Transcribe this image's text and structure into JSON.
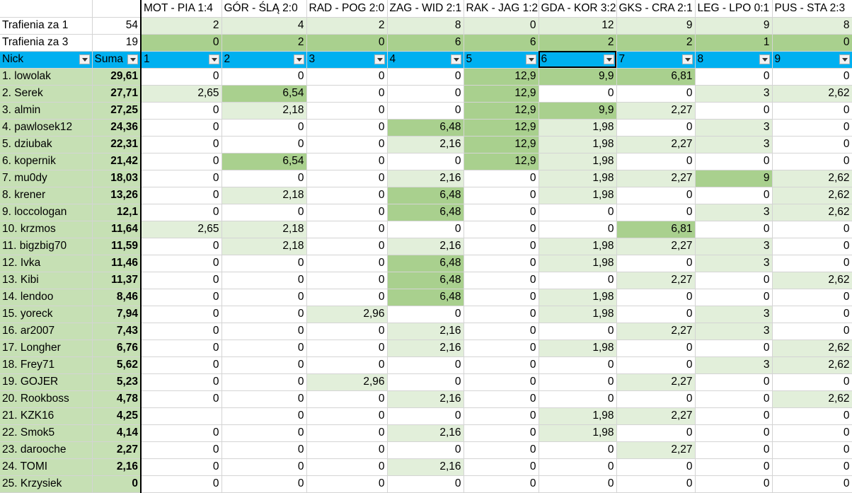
{
  "columns": [
    "Nick",
    "Suma",
    "1",
    "2",
    "3",
    "4",
    "5",
    "6",
    "7",
    "8",
    "9"
  ],
  "matches": [
    "MOT - PIA 1:4",
    "GÓR - ŚLĄ 2:0",
    "RAD - POG 2:0",
    "ZAG - WID 2:1",
    "RAK - JAG 1:2",
    "GDA - KOR 3:2",
    "GKS - CRA 2:1",
    "LEG - LPO 0:1",
    "PUS - STA 2:3"
  ],
  "trafienia1": {
    "label": "Trafienia za 1",
    "total": "54",
    "values": [
      "2",
      "4",
      "2",
      "8",
      "0",
      "12",
      "9",
      "9",
      "8"
    ]
  },
  "trafienia3": {
    "label": "Trafienia za 3",
    "total": "19",
    "values": [
      "0",
      "2",
      "0",
      "6",
      "6",
      "2",
      "2",
      "1",
      "0"
    ]
  },
  "rows": [
    {
      "nick": "1.  lowolak",
      "suma": "29,61",
      "v": [
        "0",
        "0",
        "0",
        "0",
        "12,9",
        "9,9",
        "6,81",
        "0",
        "0"
      ],
      "s": [
        0,
        0,
        0,
        0,
        2,
        2,
        2,
        0,
        0
      ]
    },
    {
      "nick": "2.  Serek",
      "suma": "27,71",
      "v": [
        "2,65",
        "6,54",
        "0",
        "0",
        "12,9",
        "0",
        "0",
        "3",
        "2,62"
      ],
      "s": [
        1,
        2,
        0,
        0,
        2,
        0,
        0,
        1,
        1
      ]
    },
    {
      "nick": "3.  almin",
      "suma": "27,25",
      "v": [
        "0",
        "2,18",
        "0",
        "0",
        "12,9",
        "9,9",
        "2,27",
        "0",
        "0"
      ],
      "s": [
        0,
        1,
        0,
        0,
        2,
        2,
        1,
        0,
        0
      ]
    },
    {
      "nick": "4.  pawlosek12",
      "suma": "24,36",
      "v": [
        "0",
        "0",
        "0",
        "6,48",
        "12,9",
        "1,98",
        "0",
        "3",
        "0"
      ],
      "s": [
        0,
        0,
        0,
        2,
        2,
        1,
        0,
        1,
        0
      ]
    },
    {
      "nick": "5.  dziubak",
      "suma": "22,31",
      "v": [
        "0",
        "0",
        "0",
        "2,16",
        "12,9",
        "1,98",
        "2,27",
        "3",
        "0"
      ],
      "s": [
        0,
        0,
        0,
        1,
        2,
        1,
        1,
        1,
        0
      ]
    },
    {
      "nick": "6.  kopernik",
      "suma": "21,42",
      "v": [
        "0",
        "6,54",
        "0",
        "0",
        "12,9",
        "1,98",
        "0",
        "0",
        "0"
      ],
      "s": [
        0,
        2,
        0,
        0,
        2,
        1,
        0,
        0,
        0
      ]
    },
    {
      "nick": "7.  mu0dy",
      "suma": "18,03",
      "v": [
        "0",
        "0",
        "0",
        "2,16",
        "0",
        "1,98",
        "2,27",
        "9",
        "2,62"
      ],
      "s": [
        0,
        0,
        0,
        1,
        0,
        1,
        1,
        2,
        1
      ]
    },
    {
      "nick": "8.  krener",
      "suma": "13,26",
      "v": [
        "0",
        "2,18",
        "0",
        "6,48",
        "0",
        "1,98",
        "0",
        "0",
        "2,62"
      ],
      "s": [
        0,
        1,
        0,
        2,
        0,
        1,
        0,
        0,
        1
      ]
    },
    {
      "nick": "9.  loccologan",
      "suma": "12,1",
      "v": [
        "0",
        "0",
        "0",
        "6,48",
        "0",
        "0",
        "0",
        "3",
        "2,62"
      ],
      "s": [
        0,
        0,
        0,
        2,
        0,
        0,
        0,
        1,
        1
      ]
    },
    {
      "nick": "10.  krzmos",
      "suma": "11,64",
      "v": [
        "2,65",
        "2,18",
        "0",
        "0",
        "0",
        "0",
        "6,81",
        "0",
        "0"
      ],
      "s": [
        1,
        1,
        0,
        0,
        0,
        0,
        2,
        0,
        0
      ]
    },
    {
      "nick": "11.  bigzbig70",
      "suma": "11,59",
      "v": [
        "0",
        "2,18",
        "0",
        "2,16",
        "0",
        "1,98",
        "2,27",
        "3",
        "0"
      ],
      "s": [
        0,
        1,
        0,
        1,
        0,
        1,
        1,
        1,
        0
      ]
    },
    {
      "nick": "12.  Ivka",
      "suma": "11,46",
      "v": [
        "0",
        "0",
        "0",
        "6,48",
        "0",
        "1,98",
        "0",
        "3",
        "0"
      ],
      "s": [
        0,
        0,
        0,
        2,
        0,
        1,
        0,
        1,
        0
      ]
    },
    {
      "nick": "13.  Kibi",
      "suma": "11,37",
      "v": [
        "0",
        "0",
        "0",
        "6,48",
        "0",
        "0",
        "2,27",
        "0",
        "2,62"
      ],
      "s": [
        0,
        0,
        0,
        2,
        0,
        0,
        1,
        0,
        1
      ]
    },
    {
      "nick": "14.  lendoo",
      "suma": "8,46",
      "v": [
        "0",
        "0",
        "0",
        "6,48",
        "0",
        "1,98",
        "0",
        "0",
        "0"
      ],
      "s": [
        0,
        0,
        0,
        2,
        0,
        1,
        0,
        0,
        0
      ]
    },
    {
      "nick": "15.  yoreck",
      "suma": "7,94",
      "v": [
        "0",
        "0",
        "2,96",
        "0",
        "0",
        "1,98",
        "0",
        "3",
        "0"
      ],
      "s": [
        0,
        0,
        1,
        0,
        0,
        1,
        0,
        1,
        0
      ]
    },
    {
      "nick": "16.  ar2007",
      "suma": "7,43",
      "v": [
        "0",
        "0",
        "0",
        "2,16",
        "0",
        "0",
        "2,27",
        "3",
        "0"
      ],
      "s": [
        0,
        0,
        0,
        1,
        0,
        0,
        1,
        1,
        0
      ]
    },
    {
      "nick": "17.  Longher",
      "suma": "6,76",
      "v": [
        "0",
        "0",
        "0",
        "2,16",
        "0",
        "1,98",
        "0",
        "0",
        "2,62"
      ],
      "s": [
        0,
        0,
        0,
        1,
        0,
        1,
        0,
        0,
        1
      ]
    },
    {
      "nick": "18.  Frey71",
      "suma": "5,62",
      "v": [
        "0",
        "0",
        "0",
        "0",
        "0",
        "0",
        "0",
        "3",
        "2,62"
      ],
      "s": [
        0,
        0,
        0,
        0,
        0,
        0,
        0,
        1,
        1
      ]
    },
    {
      "nick": "19.  GOJER",
      "suma": "5,23",
      "v": [
        "0",
        "0",
        "2,96",
        "0",
        "0",
        "0",
        "2,27",
        "0",
        "0"
      ],
      "s": [
        0,
        0,
        1,
        0,
        0,
        0,
        1,
        0,
        0
      ]
    },
    {
      "nick": "20.  Rookboss",
      "suma": "4,78",
      "v": [
        "0",
        "0",
        "0",
        "2,16",
        "0",
        "0",
        "0",
        "0",
        "2,62"
      ],
      "s": [
        0,
        0,
        0,
        1,
        0,
        0,
        0,
        0,
        1
      ]
    },
    {
      "nick": "21.  KZK16",
      "suma": "4,25",
      "v": [
        "",
        "0",
        "0",
        "0",
        "0",
        "1,98",
        "2,27",
        "0",
        "0"
      ],
      "s": [
        0,
        0,
        0,
        0,
        0,
        1,
        1,
        0,
        0
      ]
    },
    {
      "nick": "22.  Smok5",
      "suma": "4,14",
      "v": [
        "0",
        "0",
        "0",
        "2,16",
        "0",
        "1,98",
        "0",
        "0",
        "0"
      ],
      "s": [
        0,
        0,
        0,
        1,
        0,
        1,
        0,
        0,
        0
      ]
    },
    {
      "nick": "23.  darooche",
      "suma": "2,27",
      "v": [
        "0",
        "0",
        "0",
        "0",
        "0",
        "0",
        "2,27",
        "0",
        "0"
      ],
      "s": [
        0,
        0,
        0,
        0,
        0,
        0,
        1,
        0,
        0
      ]
    },
    {
      "nick": "24.  TOMI",
      "suma": "2,16",
      "v": [
        "0",
        "0",
        "0",
        "2,16",
        "0",
        "0",
        "0",
        "0",
        "0"
      ],
      "s": [
        0,
        0,
        0,
        1,
        0,
        0,
        0,
        0,
        0
      ]
    },
    {
      "nick": "25.  Krzysiek",
      "suma": "0",
      "v": [
        "0",
        "0",
        "0",
        "0",
        "0",
        "0",
        "0",
        "0",
        "0"
      ],
      "s": [
        0,
        0,
        0,
        0,
        0,
        0,
        0,
        0,
        0
      ]
    }
  ],
  "colors": {
    "header": "#00b0f0",
    "light": "#e2efda",
    "dark": "#a9d08e",
    "nick": "#c6e0b4"
  }
}
